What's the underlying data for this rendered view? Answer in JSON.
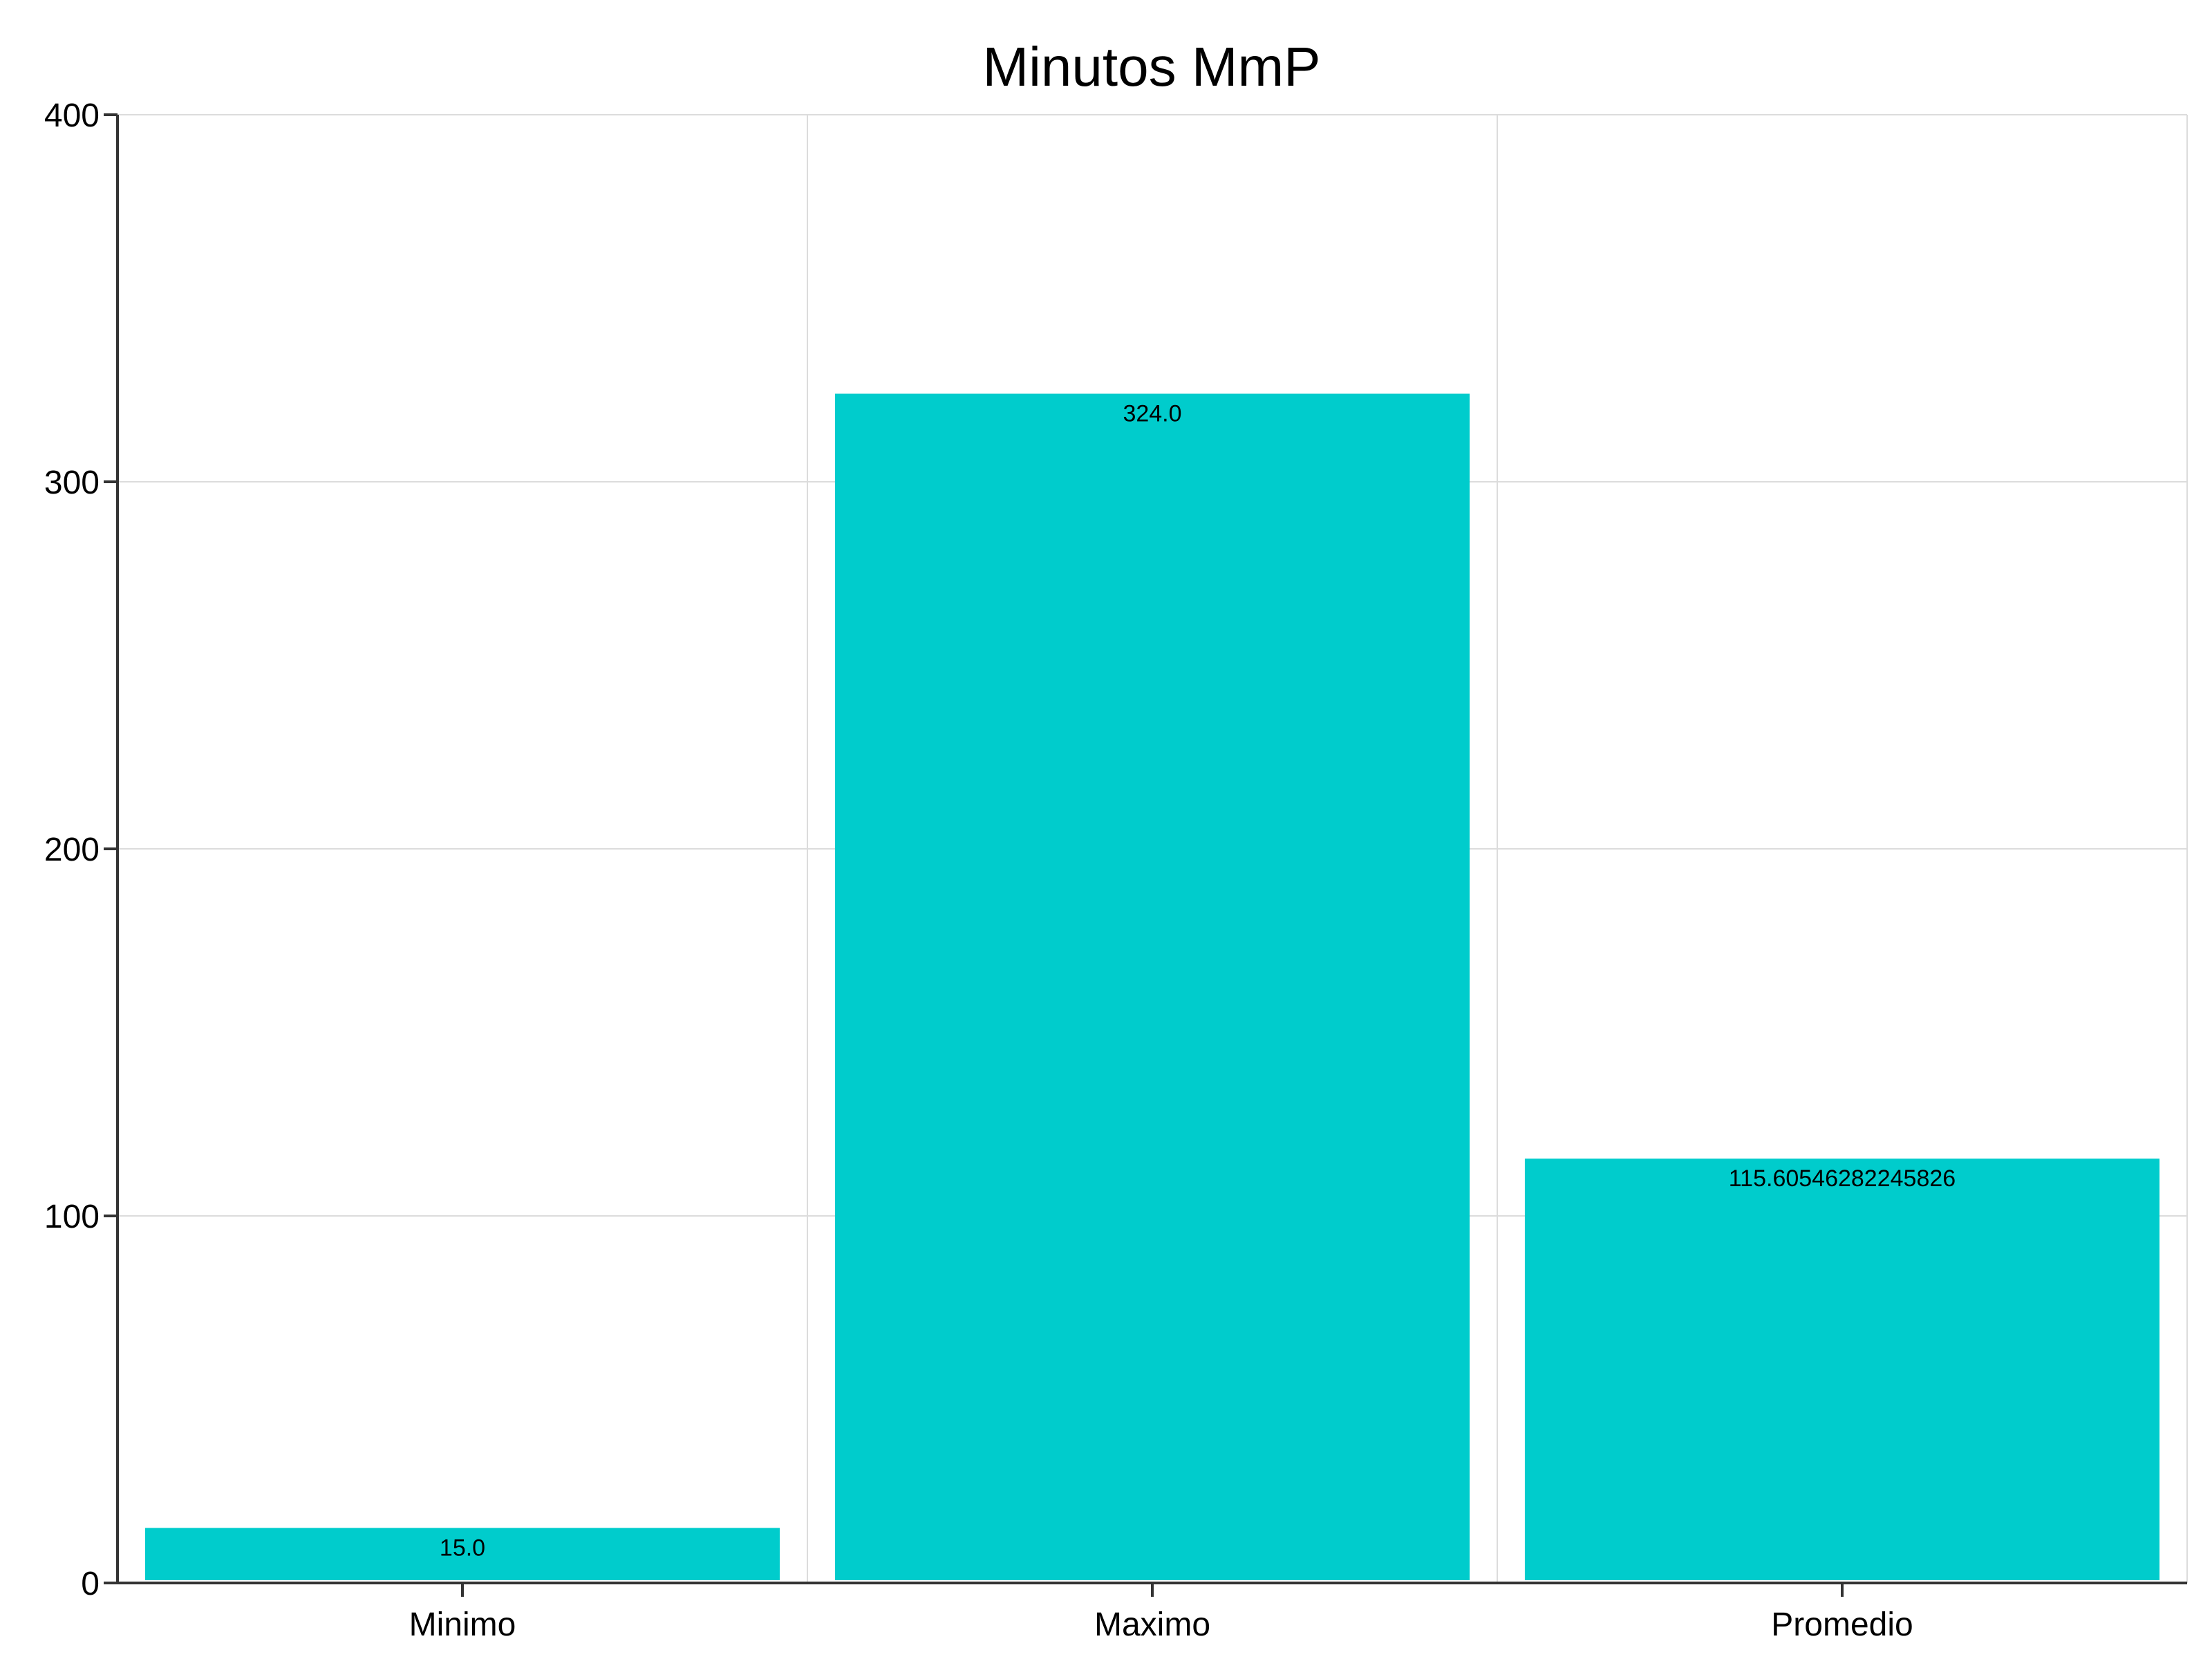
{
  "chart_data": {
    "type": "bar",
    "title": "Minutos MmP",
    "xlabel": "",
    "ylabel": "",
    "categories": [
      "Minimo",
      "Maximo",
      "Promedio"
    ],
    "values": [
      15.0,
      324.0,
      115.60546282245826
    ],
    "value_labels": [
      "15.0",
      "324.0",
      "115.60546282245826"
    ],
    "ylim": [
      0,
      400
    ],
    "yticks": [
      0,
      100,
      200,
      300,
      400
    ],
    "ytick_labels": [
      "0",
      "100",
      "200",
      "300",
      "400"
    ],
    "grid": true,
    "bar_color": "#00cccc",
    "legend": "none"
  }
}
